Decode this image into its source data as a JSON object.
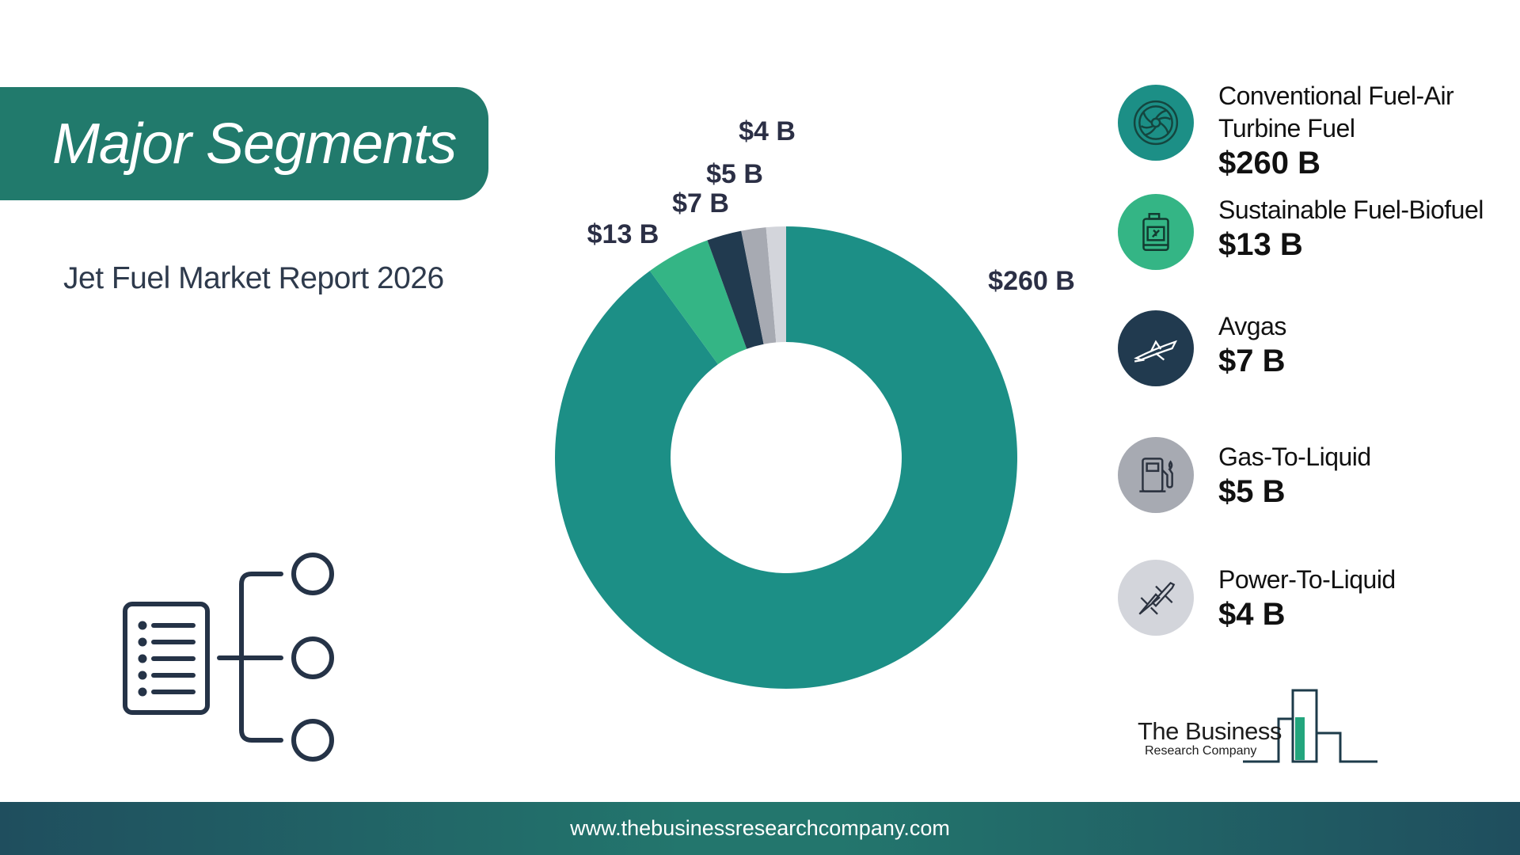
{
  "header": {
    "title": "Major Segments",
    "subtitle": "Jet Fuel Market Report 2026"
  },
  "chart_data": {
    "type": "pie",
    "donut": true,
    "categories": [
      "Conventional Fuel-Air Turbine Fuel",
      "Sustainable Fuel-Biofuel",
      "Avgas",
      "Gas-To-Liquid",
      "Power-To-Liquid"
    ],
    "values": [
      260,
      13,
      7,
      5,
      4
    ],
    "data_labels": [
      "$260 B",
      "$13 B",
      "$7 B",
      "$5 B",
      "$4 B"
    ],
    "colors": [
      "#1c8f86",
      "#34b585",
      "#213a4f",
      "#a7aab2",
      "#d3d5db"
    ],
    "unit": "$ B"
  },
  "legend": [
    {
      "name": "Conventional Fuel-Air Turbine Fuel",
      "value": "$260 B",
      "icon": "turbine-icon",
      "color": "#1c8f86"
    },
    {
      "name": "Sustainable Fuel-Biofuel",
      "value": "$13 B",
      "icon": "fuel-can-icon",
      "color": "#34b585"
    },
    {
      "name": "Avgas",
      "value": "$7 B",
      "icon": "jet-icon",
      "color": "#213a4f"
    },
    {
      "name": "Gas-To-Liquid",
      "value": "$5 B",
      "icon": "fuel-pump-icon",
      "color": "#a7aab2"
    },
    {
      "name": "Power-To-Liquid",
      "value": "$4 B",
      "icon": "fighter-jets-icon",
      "color": "#d3d5db"
    }
  ],
  "logo": {
    "name": "The Business",
    "sub": "Research Company"
  },
  "footer": {
    "url": "www.thebusinessresearchcompany.com"
  }
}
